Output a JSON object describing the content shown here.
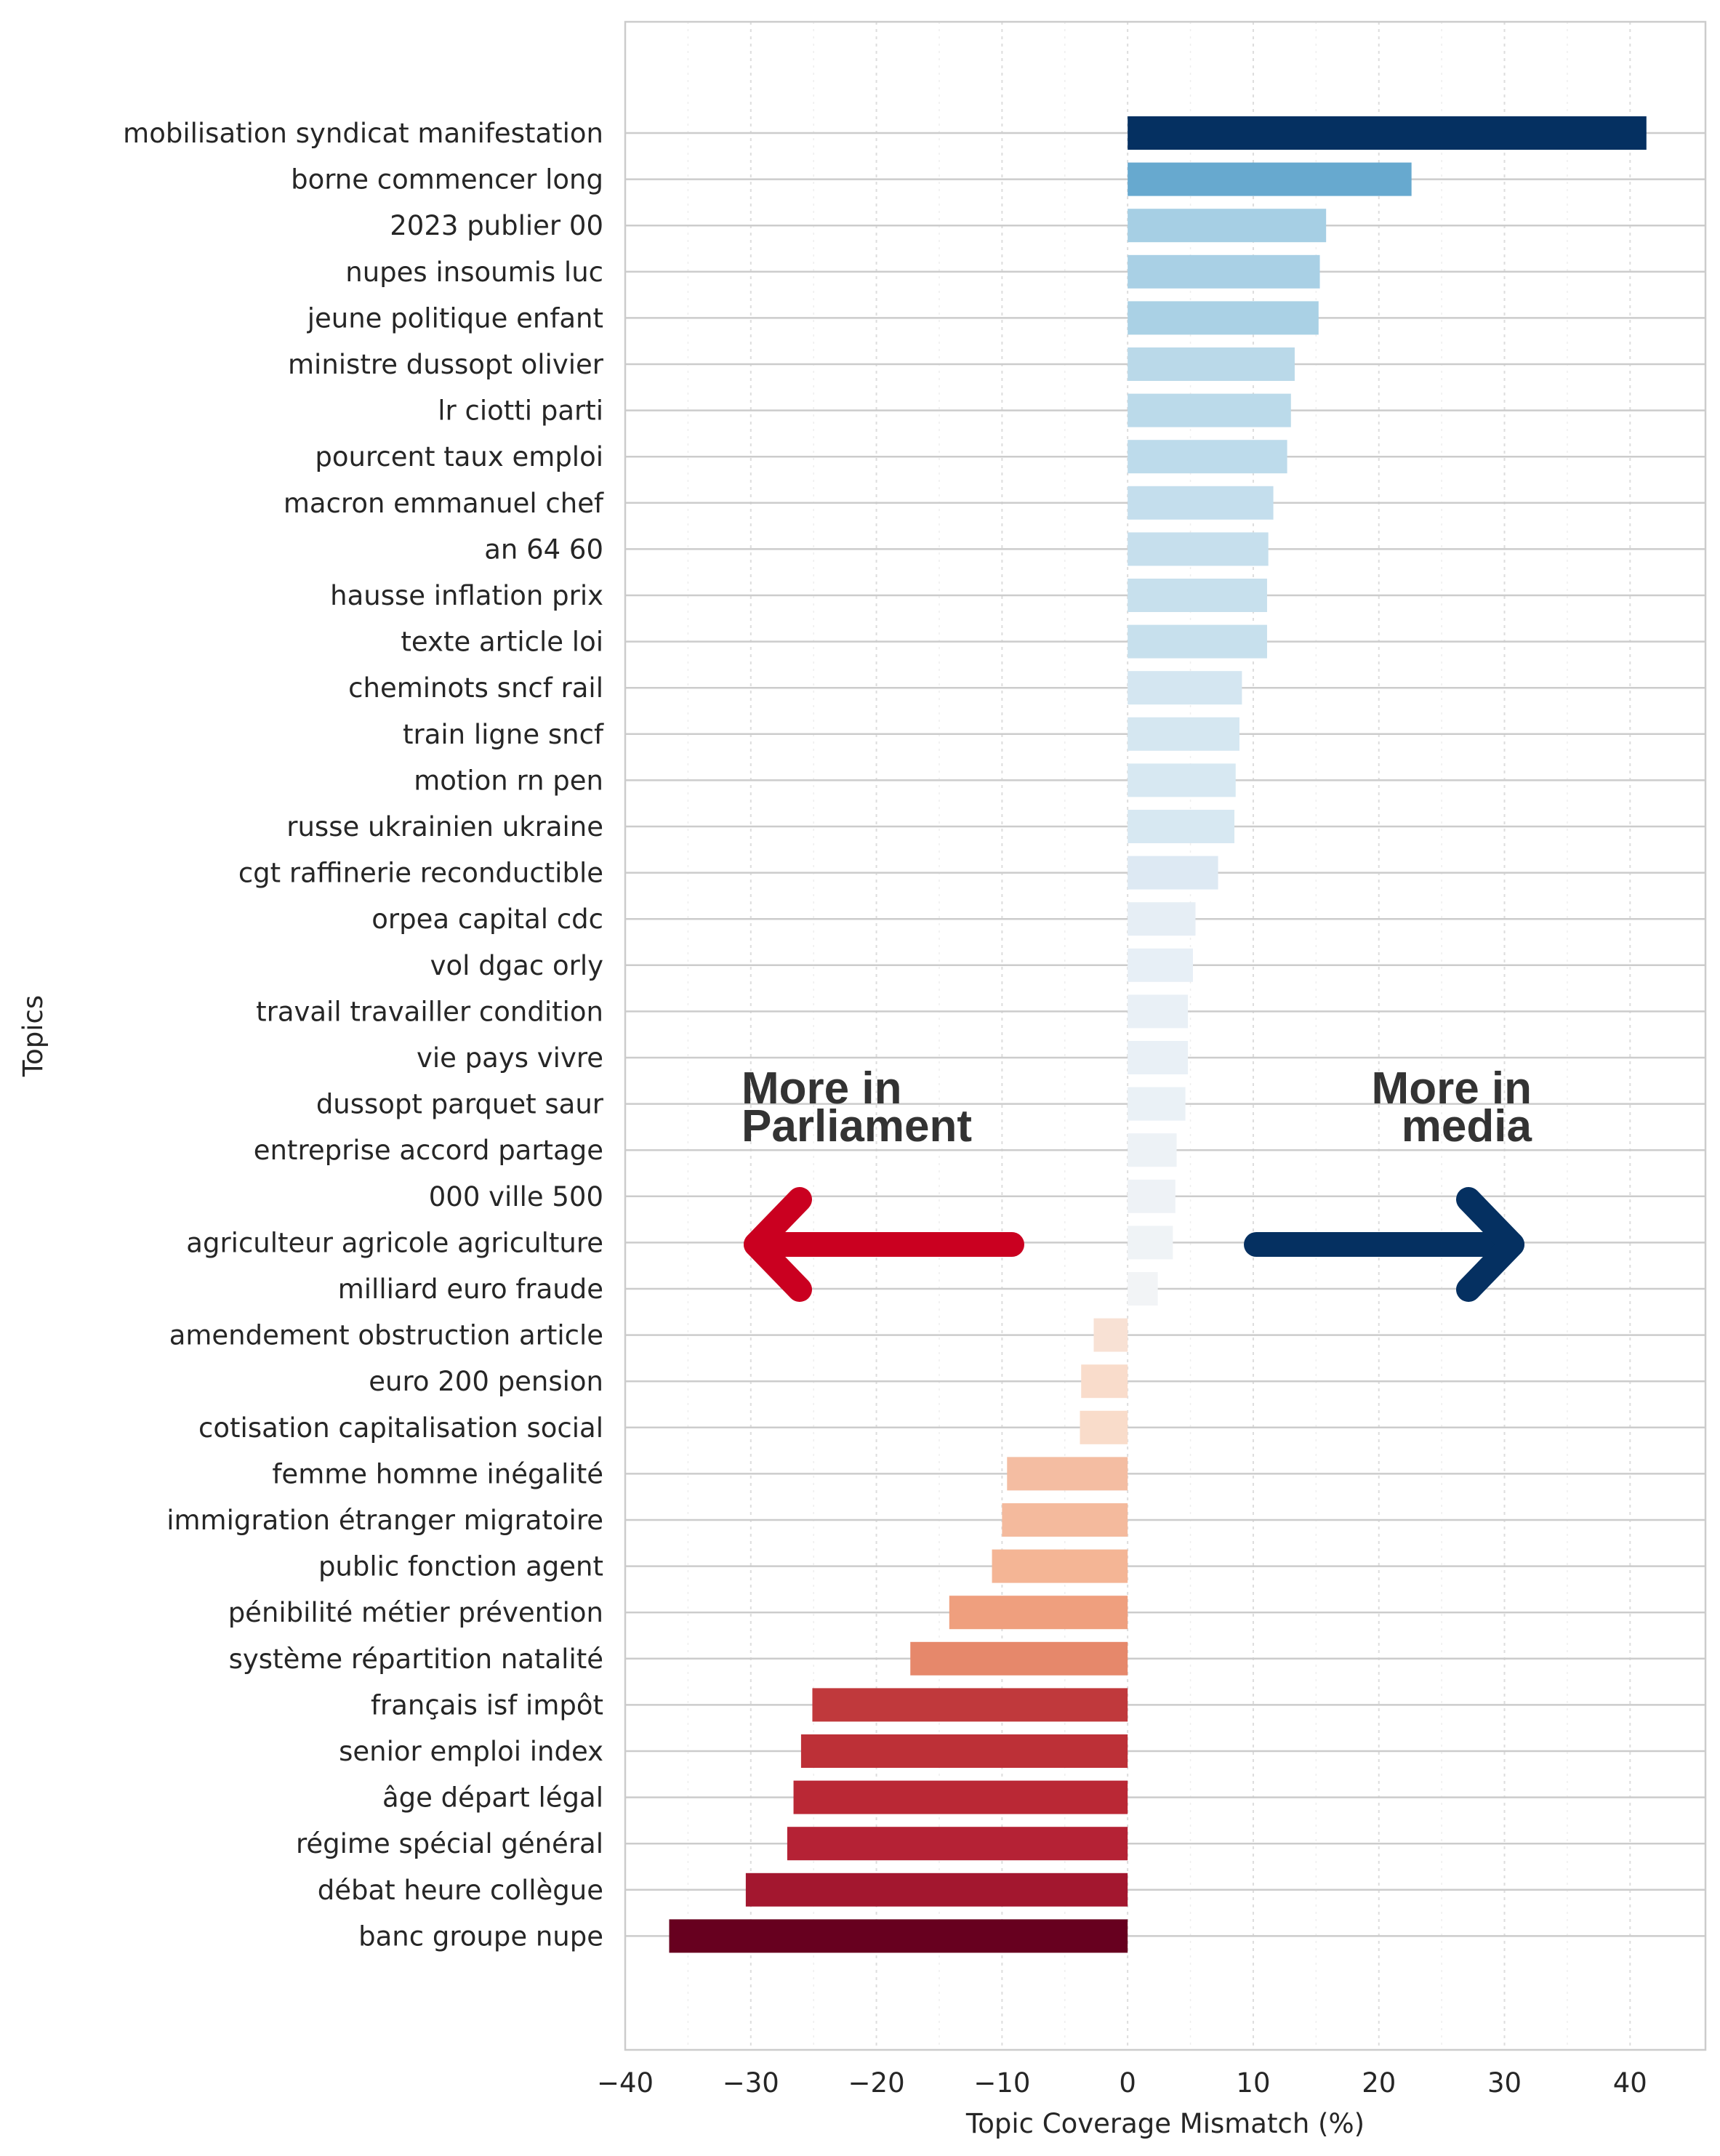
{
  "chart_data": {
    "type": "bar",
    "orientation": "horizontal",
    "xlabel": "Topic Coverage Mismatch (%)",
    "ylabel": "Topics",
    "xlim": [
      -40,
      46
    ],
    "xticks": [
      -40,
      -30,
      -20,
      -10,
      0,
      10,
      20,
      30,
      40
    ],
    "grid": true,
    "categories": [
      "mobilisation syndicat manifestation",
      "borne commencer long",
      "2023 publier 00",
      "nupes insoumis luc",
      "jeune politique enfant",
      "ministre dussopt olivier",
      "lr ciotti parti",
      "pourcent taux emploi",
      "macron emmanuel chef",
      "an 64 60",
      "hausse inflation prix",
      "texte article loi",
      "cheminots sncf rail",
      "train ligne sncf",
      "motion rn pen",
      "russe ukrainien ukraine",
      "cgt raffinerie reconductible",
      "orpea capital cdc",
      "vol dgac orly",
      "travail travailler condition",
      "vie pays vivre",
      "dussopt parquet saur",
      "entreprise accord partage",
      "000 ville 500",
      "agriculteur agricole agriculture",
      "milliard euro fraude",
      "amendement obstruction article",
      "euro 200 pension",
      "cotisation capitalisation social",
      "femme homme inégalité",
      "immigration étranger migratoire",
      "public fonction agent",
      "pénibilité métier prévention",
      "système répartition natalité",
      "français isf impôt",
      "senior emploi index",
      "âge départ légal",
      "régime spécial général",
      "débat heure collègue",
      "banc groupe nupe"
    ],
    "values": [
      41.3,
      22.6,
      15.8,
      15.3,
      15.2,
      13.3,
      13.0,
      12.7,
      11.6,
      11.2,
      11.1,
      11.1,
      9.1,
      8.9,
      8.6,
      8.5,
      7.2,
      5.4,
      5.2,
      4.8,
      4.8,
      4.6,
      3.9,
      3.8,
      3.6,
      2.4,
      -2.7,
      -3.7,
      -3.8,
      -9.6,
      -10.0,
      -10.8,
      -14.2,
      -17.3,
      -25.1,
      -26.0,
      -26.6,
      -27.1,
      -30.4,
      -36.5
    ],
    "colors": [
      "#053061",
      "#67a9cf",
      "#a6cfe4",
      "#a9d0e5",
      "#aad1e5",
      "#bad9e9",
      "#bbdaea",
      "#bddbeb",
      "#c4deed",
      "#c6dfed",
      "#c7e0ed",
      "#c7e0ed",
      "#d4e6f1",
      "#d5e7f1",
      "#d7e8f2",
      "#d7e8f2",
      "#dde9f3",
      "#e6eef5",
      "#e7eff6",
      "#e9f0f6",
      "#e9f0f6",
      "#eaf1f6",
      "#edf2f6",
      "#eef2f6",
      "#eff3f6",
      "#f2f4f6",
      "#f8e1d4",
      "#f9dccb",
      "#f9dcca",
      "#f4bda2",
      "#f4ba9d",
      "#f4b595",
      "#ef9f7e",
      "#e6886b",
      "#c0393c",
      "#bd3037",
      "#ba2835",
      "#b52235",
      "#a3172f",
      "#67001f"
    ],
    "annotations": {
      "left_text_line1": "More in",
      "left_text_line2": "Parliament",
      "right_text_line1": "More in",
      "right_text_line2": "media",
      "left_arrow_color": "#ca0020",
      "right_arrow_color": "#053061"
    }
  }
}
